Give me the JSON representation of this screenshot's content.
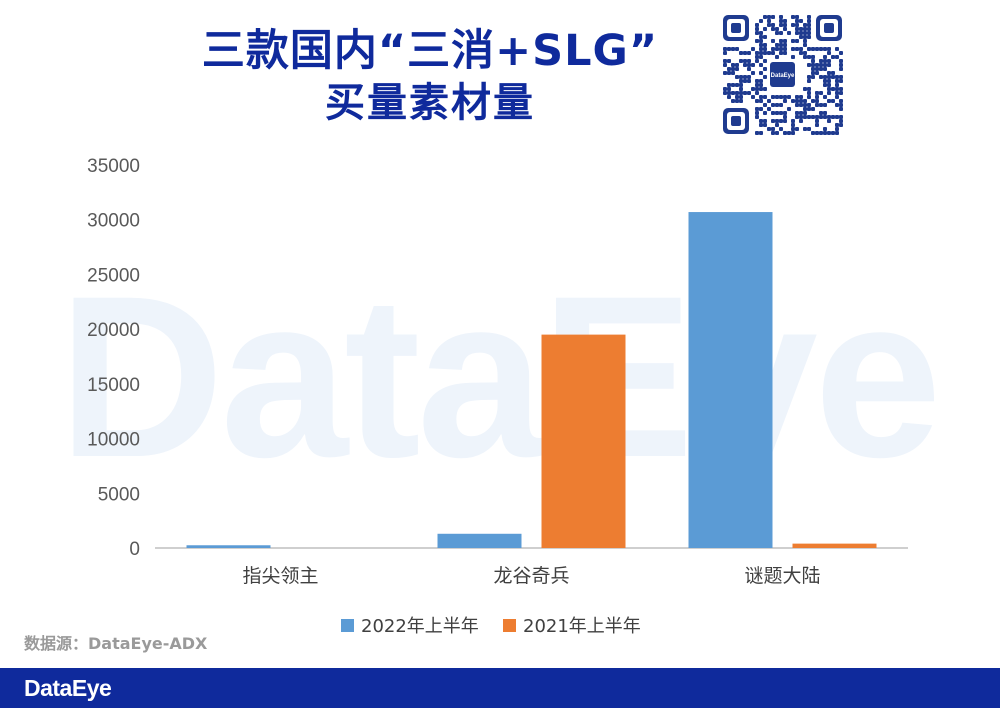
{
  "watermark": "DataEye",
  "title": {
    "line1": "三款国内“三消+SLG”",
    "line2": "买量素材量"
  },
  "qr_center_label": "DataEye",
  "source": "数据源：DataEye-ADX",
  "footer_brand": "DataEye",
  "colors": {
    "title": "#0f2a9c",
    "series_2022": "#5b9bd5",
    "series_2021": "#ed7d31",
    "footer": "#0f2a9c"
  },
  "chart_data": {
    "type": "bar",
    "categories": [
      "指尖领主",
      "龙谷奇兵",
      "谜题大陆"
    ],
    "series": [
      {
        "name": "2022年上半年",
        "values": [
          250,
          1300,
          30700
        ],
        "color": "#5b9bd5"
      },
      {
        "name": "2021年上半年",
        "values": [
          0,
          19500,
          400
        ],
        "color": "#ed7d31"
      }
    ],
    "yticks": [
      0,
      5000,
      10000,
      15000,
      20000,
      25000,
      30000,
      35000
    ],
    "ylim": [
      0,
      35000
    ],
    "grid": false,
    "legend_position": "bottom"
  }
}
